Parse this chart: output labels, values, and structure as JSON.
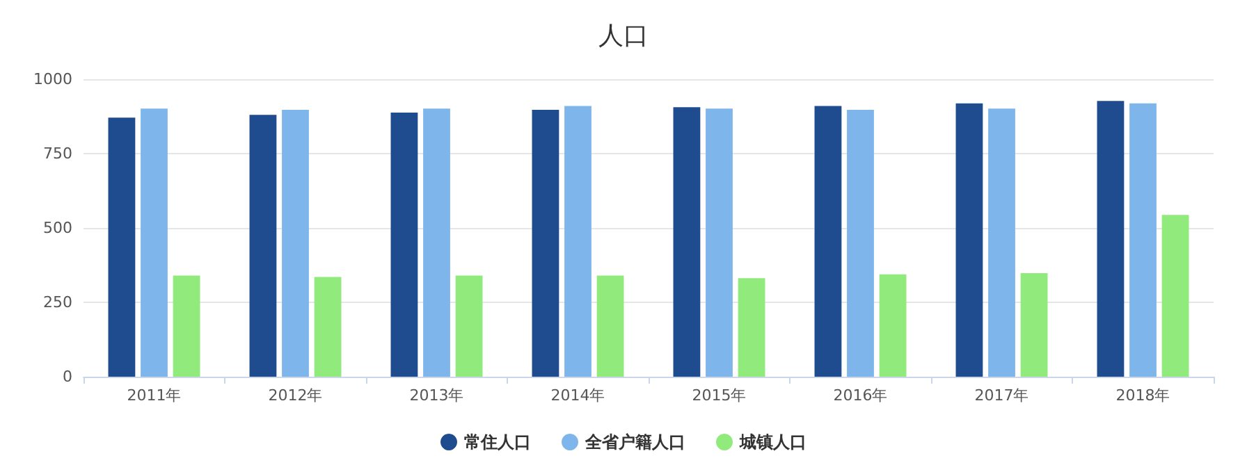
{
  "chart_data": {
    "type": "bar",
    "title": "人口",
    "categories": [
      "2011年",
      "2012年",
      "2013年",
      "2014年",
      "2015年",
      "2016年",
      "2017年",
      "2018年"
    ],
    "series": [
      {
        "name": "常住人口",
        "color": "#1f4b8f",
        "values": [
          871,
          880,
          888,
          897,
          906,
          910,
          919,
          927
        ]
      },
      {
        "name": "全省户籍人口",
        "color": "#7eb5eb",
        "values": [
          901,
          897,
          901,
          910,
          901,
          897,
          901,
          919
        ]
      },
      {
        "name": "城镇人口",
        "color": "#90eb7c",
        "values": [
          340,
          335,
          340,
          340,
          331,
          344,
          348,
          544
        ]
      }
    ],
    "ylim": [
      0,
      1000
    ],
    "yticks": [
      0,
      250,
      500,
      750,
      1000
    ],
    "grid": "y",
    "legend": "bottom"
  }
}
